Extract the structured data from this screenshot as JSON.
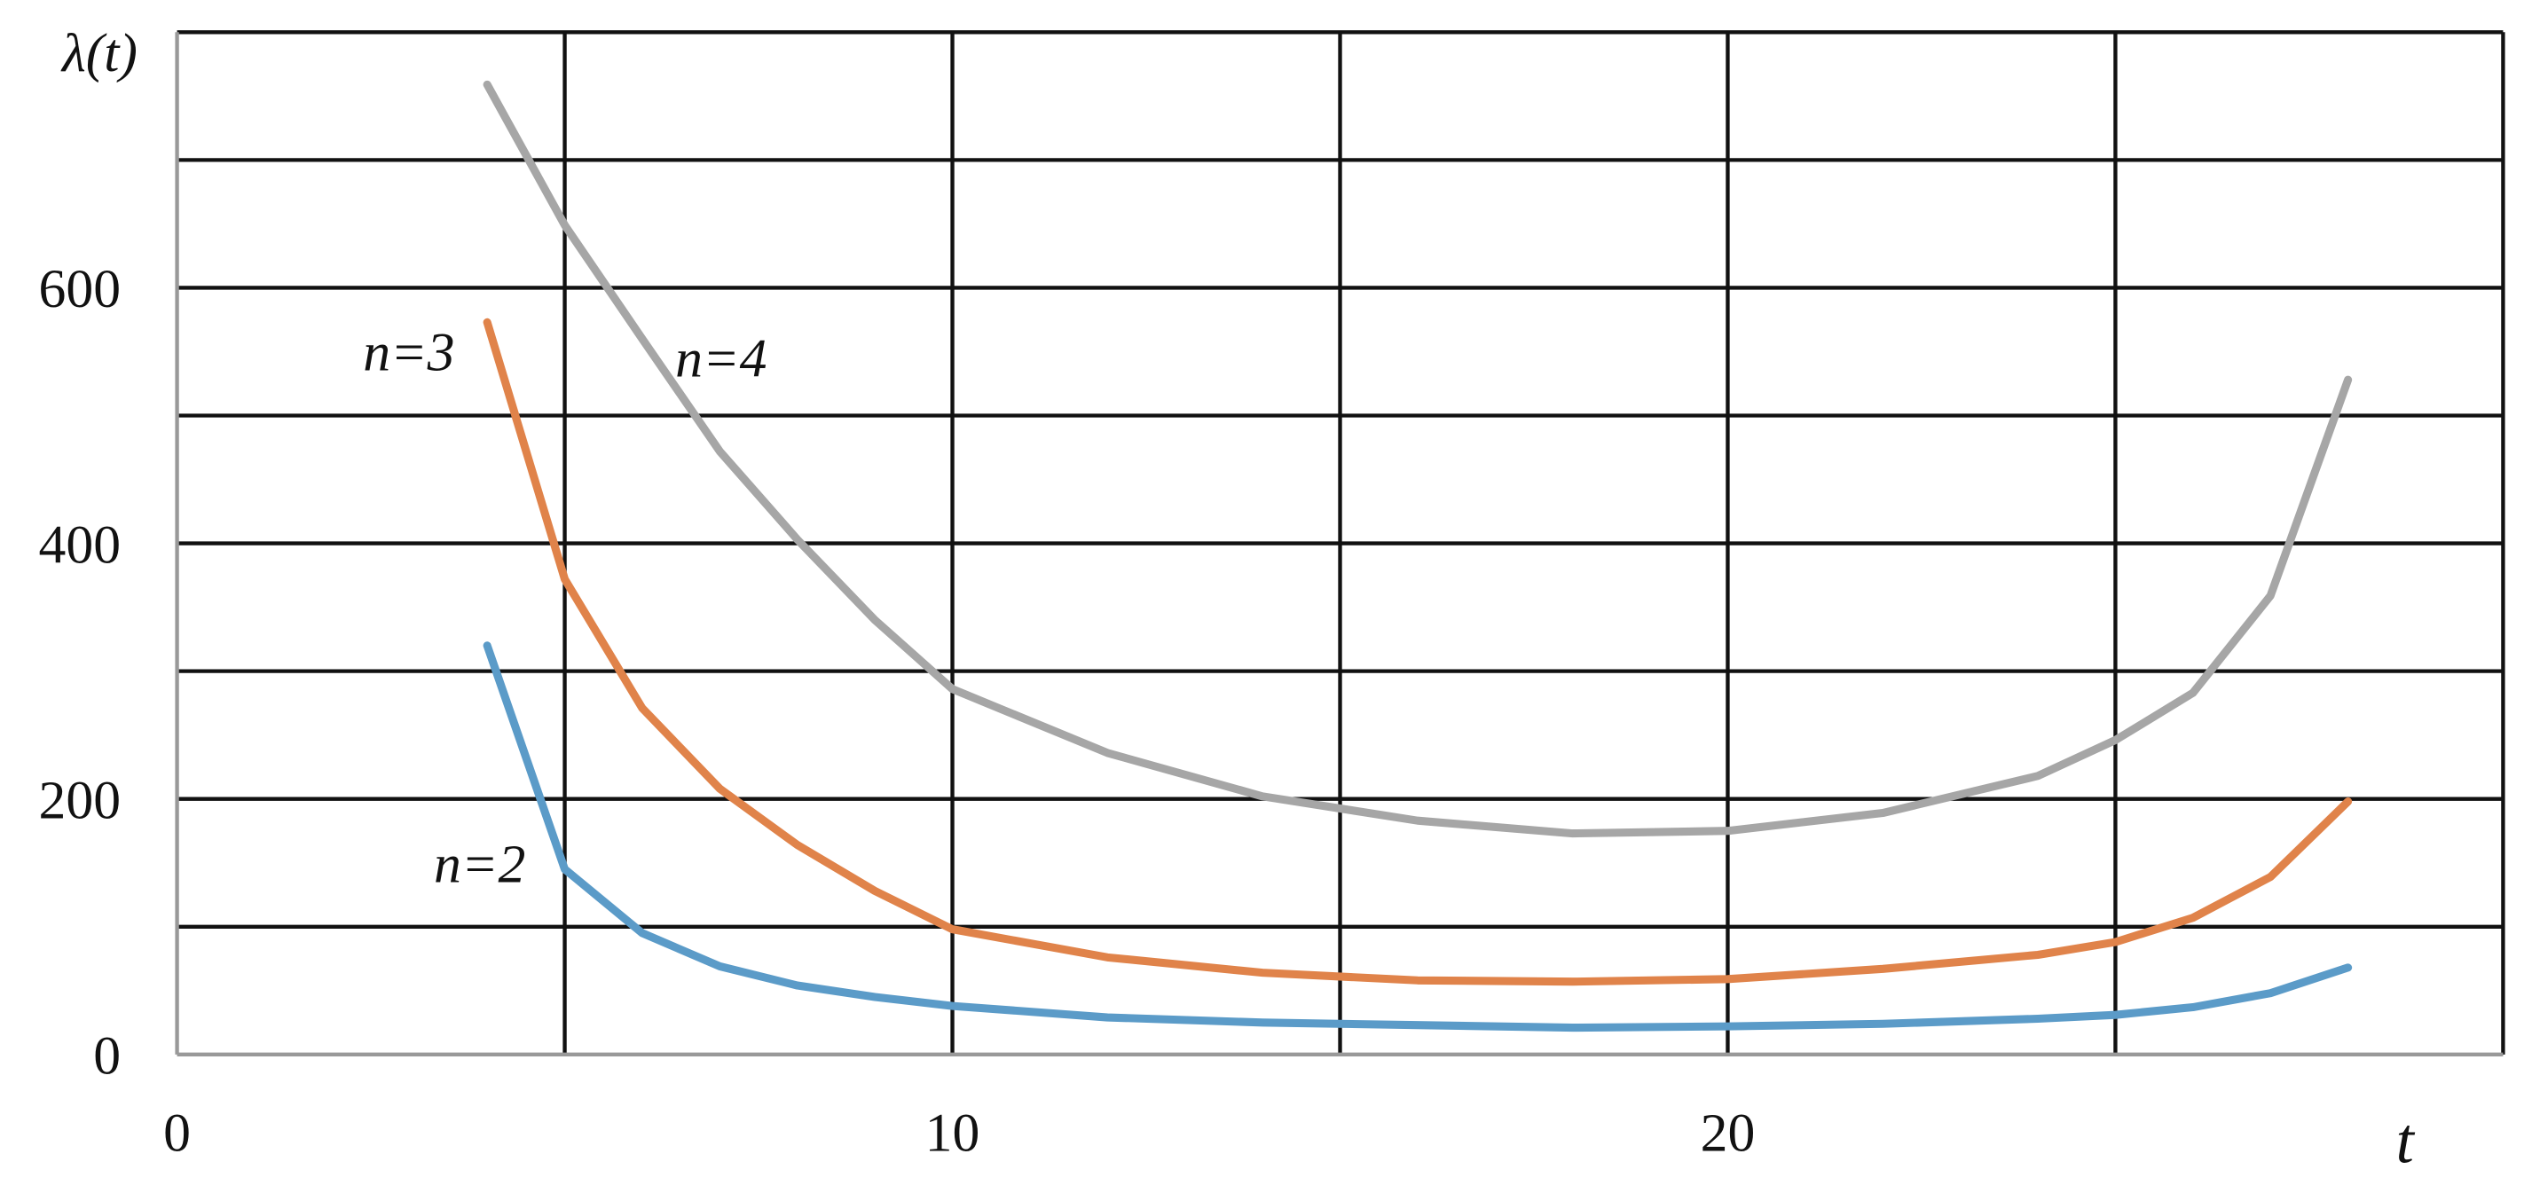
{
  "chart_data": {
    "type": "line",
    "ylabel": "λ(t)",
    "xlabel": "t",
    "x": [
      4,
      5,
      6,
      7,
      8,
      9,
      10,
      12,
      14,
      16,
      18,
      20,
      22,
      24,
      25,
      26,
      27,
      28
    ],
    "series": [
      {
        "name": "n=2",
        "color": "#5b9bc8",
        "values": [
          320,
          145,
          95,
          69,
          54,
          45,
          38,
          29,
          25,
          23,
          21,
          22,
          24,
          28,
          31,
          37,
          48,
          68
        ]
      },
      {
        "name": "n=3",
        "color": "#e0834a",
        "values": [
          573,
          372,
          271,
          208,
          164,
          128,
          98,
          76,
          64,
          58,
          57,
          59,
          67,
          78,
          88,
          107,
          139,
          198
        ]
      },
      {
        "name": "n=4",
        "color": "#a6a6a6",
        "values": [
          759,
          649,
          560,
          472,
          403,
          340,
          286,
          236,
          202,
          183,
          173,
          175,
          189,
          218,
          246,
          283,
          359,
          528
        ]
      }
    ],
    "xlim": [
      0,
      30
    ],
    "ylim": [
      0,
      800
    ],
    "xticks": [
      0,
      10,
      20
    ],
    "yticks": [
      0,
      200,
      400,
      600
    ],
    "xminor": [
      5,
      15,
      25,
      30
    ],
    "yminor": [
      100,
      300,
      500,
      700,
      800
    ],
    "grid": true
  }
}
